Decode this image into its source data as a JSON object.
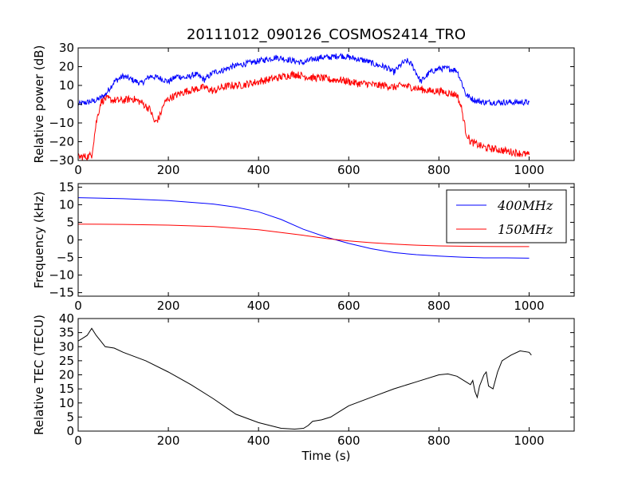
{
  "title": "20111012_090126_COSMOS2414_TRO",
  "colors": {
    "blue": "#0000ff",
    "red": "#ff0000",
    "black": "#000000"
  },
  "chart_data": [
    {
      "type": "line",
      "ylabel": "Relative power (dB)",
      "xlim": [
        0,
        1100
      ],
      "ylim": [
        -30,
        30
      ],
      "xticks": [
        "0",
        "200",
        "400",
        "600",
        "800",
        "1000"
      ],
      "yticks": [
        "30",
        "20",
        "10",
        "0",
        "−10",
        "−20",
        "−30"
      ],
      "ytick_values": [
        30,
        20,
        10,
        0,
        -10,
        -20,
        -30
      ],
      "noisy": true,
      "series": [
        {
          "color": "#0000ff",
          "noise": 1.6,
          "points": [
            [
              0,
              0
            ],
            [
              20,
              1
            ],
            [
              40,
              2
            ],
            [
              60,
              5
            ],
            [
              80,
              12
            ],
            [
              100,
              15
            ],
            [
              120,
              13
            ],
            [
              140,
              11
            ],
            [
              160,
              15
            ],
            [
              180,
              14
            ],
            [
              200,
              12
            ],
            [
              220,
              15
            ],
            [
              240,
              14
            ],
            [
              260,
              16
            ],
            [
              280,
              13
            ],
            [
              300,
              17
            ],
            [
              320,
              18
            ],
            [
              340,
              20
            ],
            [
              360,
              21
            ],
            [
              380,
              22
            ],
            [
              400,
              23
            ],
            [
              420,
              24
            ],
            [
              440,
              25
            ],
            [
              460,
              24
            ],
            [
              480,
              23
            ],
            [
              500,
              22
            ],
            [
              520,
              24
            ],
            [
              540,
              25
            ],
            [
              560,
              25
            ],
            [
              580,
              26
            ],
            [
              600,
              25
            ],
            [
              620,
              24
            ],
            [
              640,
              23
            ],
            [
              660,
              21
            ],
            [
              680,
              20
            ],
            [
              700,
              17
            ],
            [
              720,
              22
            ],
            [
              730,
              23
            ],
            [
              740,
              21
            ],
            [
              760,
              12
            ],
            [
              780,
              17
            ],
            [
              800,
              19
            ],
            [
              820,
              19
            ],
            [
              840,
              18
            ],
            [
              850,
              12
            ],
            [
              860,
              5
            ],
            [
              880,
              2
            ],
            [
              900,
              1
            ],
            [
              950,
              1
            ],
            [
              1000,
              1
            ]
          ]
        },
        {
          "color": "#ff0000",
          "noise": 2.0,
          "points": [
            [
              0,
              -28
            ],
            [
              20,
              -28
            ],
            [
              30,
              -27
            ],
            [
              40,
              -10
            ],
            [
              50,
              1
            ],
            [
              60,
              3
            ],
            [
              80,
              2
            ],
            [
              100,
              2
            ],
            [
              120,
              3
            ],
            [
              140,
              1
            ],
            [
              150,
              -1
            ],
            [
              160,
              -3
            ],
            [
              170,
              -10
            ],
            [
              180,
              -7
            ],
            [
              190,
              0
            ],
            [
              200,
              3
            ],
            [
              220,
              5
            ],
            [
              240,
              7
            ],
            [
              260,
              8
            ],
            [
              280,
              9
            ],
            [
              300,
              7
            ],
            [
              320,
              9
            ],
            [
              340,
              10
            ],
            [
              360,
              10
            ],
            [
              380,
              11
            ],
            [
              400,
              12
            ],
            [
              420,
              13
            ],
            [
              440,
              14
            ],
            [
              460,
              15
            ],
            [
              480,
              16
            ],
            [
              500,
              15
            ],
            [
              520,
              14
            ],
            [
              540,
              14
            ],
            [
              560,
              13
            ],
            [
              580,
              13
            ],
            [
              600,
              12
            ],
            [
              620,
              11
            ],
            [
              640,
              11
            ],
            [
              660,
              10
            ],
            [
              680,
              10
            ],
            [
              700,
              9
            ],
            [
              720,
              10
            ],
            [
              740,
              9
            ],
            [
              760,
              8
            ],
            [
              780,
              7
            ],
            [
              800,
              7
            ],
            [
              820,
              6
            ],
            [
              840,
              5
            ],
            [
              850,
              -2
            ],
            [
              860,
              -15
            ],
            [
              870,
              -20
            ],
            [
              900,
              -23
            ],
            [
              950,
              -25
            ],
            [
              1000,
              -27
            ]
          ]
        }
      ]
    },
    {
      "type": "line",
      "ylabel": "Frequency (kHz)",
      "xlim": [
        0,
        1100
      ],
      "ylim": [
        -16,
        16
      ],
      "xticks": [
        "0",
        "200",
        "400",
        "600",
        "800",
        "1000"
      ],
      "yticks": [
        "15",
        "10",
        "5",
        "0",
        "−5",
        "−10",
        "−15"
      ],
      "ytick_values": [
        15,
        10,
        5,
        0,
        -5,
        -10,
        -15
      ],
      "noisy": false,
      "legend": {
        "position": "top-right",
        "entries": [
          {
            "label": "400MHz",
            "color": "#0000ff"
          },
          {
            "label": "150MHz",
            "color": "#ff0000"
          }
        ]
      },
      "series": [
        {
          "color": "#0000ff",
          "points": [
            [
              0,
              12
            ],
            [
              100,
              11.7
            ],
            [
              200,
              11.2
            ],
            [
              300,
              10.2
            ],
            [
              350,
              9.3
            ],
            [
              400,
              8
            ],
            [
              450,
              5.8
            ],
            [
              500,
              3
            ],
            [
              550,
              0.8
            ],
            [
              600,
              -1
            ],
            [
              650,
              -2.5
            ],
            [
              700,
              -3.6
            ],
            [
              750,
              -4.2
            ],
            [
              800,
              -4.6
            ],
            [
              850,
              -4.9
            ],
            [
              900,
              -5.1
            ],
            [
              950,
              -5.1
            ],
            [
              1000,
              -5.2
            ]
          ]
        },
        {
          "color": "#ff0000",
          "points": [
            [
              0,
              4.5
            ],
            [
              100,
              4.4
            ],
            [
              200,
              4.2
            ],
            [
              300,
              3.8
            ],
            [
              400,
              2.9
            ],
            [
              450,
              2.1
            ],
            [
              500,
              1.3
            ],
            [
              550,
              0.4
            ],
            [
              600,
              -0.3
            ],
            [
              650,
              -0.8
            ],
            [
              700,
              -1.2
            ],
            [
              750,
              -1.5
            ],
            [
              800,
              -1.7
            ],
            [
              850,
              -1.8
            ],
            [
              900,
              -1.85
            ],
            [
              950,
              -1.9
            ],
            [
              1000,
              -1.9
            ]
          ]
        }
      ]
    },
    {
      "type": "line",
      "xlabel": "Time (s)",
      "ylabel": "Relative TEC (TECU)",
      "xlim": [
        0,
        1100
      ],
      "ylim": [
        0,
        40
      ],
      "xticks": [
        "0",
        "200",
        "400",
        "600",
        "800",
        "1000"
      ],
      "yticks": [
        "40",
        "35",
        "30",
        "25",
        "20",
        "15",
        "10",
        "5",
        "0"
      ],
      "ytick_values": [
        40,
        35,
        30,
        25,
        20,
        15,
        10,
        5,
        0
      ],
      "noisy": false,
      "series": [
        {
          "color": "#000000",
          "points": [
            [
              0,
              32
            ],
            [
              10,
              33
            ],
            [
              20,
              34
            ],
            [
              30,
              36.5
            ],
            [
              40,
              34
            ],
            [
              50,
              32
            ],
            [
              60,
              30
            ],
            [
              80,
              29.5
            ],
            [
              100,
              28
            ],
            [
              150,
              25
            ],
            [
              200,
              21
            ],
            [
              250,
              16.5
            ],
            [
              300,
              11.5
            ],
            [
              350,
              6
            ],
            [
              400,
              3
            ],
            [
              450,
              1
            ],
            [
              480,
              0.7
            ],
            [
              500,
              1
            ],
            [
              510,
              2
            ],
            [
              520,
              3.5
            ],
            [
              540,
              4
            ],
            [
              560,
              5
            ],
            [
              580,
              7
            ],
            [
              600,
              9
            ],
            [
              650,
              12
            ],
            [
              700,
              15
            ],
            [
              750,
              17.5
            ],
            [
              800,
              20
            ],
            [
              820,
              20.3
            ],
            [
              840,
              19.5
            ],
            [
              860,
              17.5
            ],
            [
              870,
              16.5
            ],
            [
              875,
              18
            ],
            [
              880,
              14
            ],
            [
              885,
              12
            ],
            [
              890,
              16
            ],
            [
              900,
              20
            ],
            [
              905,
              21
            ],
            [
              910,
              16
            ],
            [
              920,
              15
            ],
            [
              930,
              21
            ],
            [
              940,
              25
            ],
            [
              960,
              27
            ],
            [
              980,
              28.5
            ],
            [
              1000,
              28
            ],
            [
              1005,
              27
            ]
          ]
        }
      ]
    }
  ]
}
